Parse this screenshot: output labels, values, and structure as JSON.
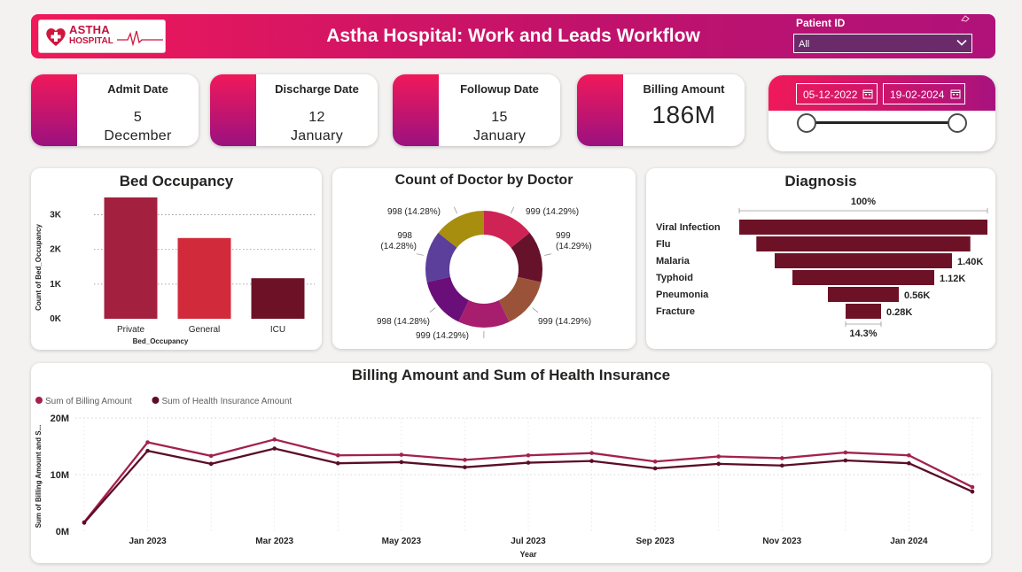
{
  "header": {
    "logo_line1": "ASTHA",
    "logo_line2": "HOSPITAL",
    "title": "Astha Hospital: Work and Leads Workflow",
    "patient_filter": {
      "label": "Patient ID",
      "value": "All"
    },
    "brand_color": "#e91460"
  },
  "kpis": [
    {
      "label": "Admit Date",
      "value": "5 December 2022"
    },
    {
      "label": "Discharge Date",
      "value": "12 January 2023"
    },
    {
      "label": "Followup Date",
      "value": "15 January 2023"
    },
    {
      "label": "Billing Amount",
      "value": "186M"
    }
  ],
  "date_slicer": {
    "start": "05-12-2022",
    "end": "19-02-2024"
  },
  "chart_data": [
    {
      "type": "bar",
      "title": "Bed Occupancy",
      "xlabel": "Bed_Occupancy",
      "ylabel": "Count of Bed_Occupancy",
      "categories": [
        "Private",
        "General",
        "ICU"
      ],
      "values": [
        3500,
        2330,
        1170
      ],
      "colors": [
        "#a3203f",
        "#d12b3b",
        "#6d1226"
      ],
      "ylim": [
        0,
        3500
      ],
      "yticks": [
        0,
        1000,
        2000,
        3000
      ],
      "ytick_labels": [
        "0K",
        "1K",
        "2K",
        "3K"
      ],
      "grid": true
    },
    {
      "type": "pie",
      "donut": true,
      "title": "Count of Doctor by Doctor",
      "slices": [
        {
          "value": 999,
          "label": "999 (14.29%)",
          "color": "#cf2356"
        },
        {
          "value": 999,
          "label": "999 (14.29%)",
          "color": "#65122a"
        },
        {
          "value": 999,
          "label": "999 (14.29%)",
          "color": "#9a5339"
        },
        {
          "value": 999,
          "label": "999 (14.29%)",
          "color": "#a81e6f"
        },
        {
          "value": 998,
          "label": "998 (14.28%)",
          "color": "#6a0f7a"
        },
        {
          "value": 998,
          "label": "998 (14.28%)",
          "color": "#5b3f9a"
        },
        {
          "value": 998,
          "label": "998 (14.28%)",
          "color": "#a88e0f"
        }
      ]
    },
    {
      "type": "bar",
      "subtype": "funnel",
      "title": "Diagnosis",
      "categories": [
        "Viral Infection",
        "Flu",
        "Malaria",
        "Typhoid",
        "Pneumonia",
        "Fracture"
      ],
      "values": [
        1960,
        1690,
        1400,
        1120,
        560,
        280
      ],
      "value_labels": [
        "",
        "",
        "1.40K",
        "1.12K",
        "0.56K",
        "0.28K"
      ],
      "top_label": "100%",
      "bottom_label": "14.3%",
      "color": "#6d1226"
    },
    {
      "type": "line",
      "title": "Billing Amount and Sum of Health Insurance",
      "xlabel": "Year",
      "ylabel": "Sum of Billing Amount and S...",
      "x": [
        "2022-12",
        "2023-01",
        "2023-02",
        "2023-03",
        "2023-04",
        "2023-05",
        "2023-06",
        "2023-07",
        "2023-08",
        "2023-09",
        "2023-10",
        "2023-11",
        "2023-12",
        "2024-01",
        "2024-02"
      ],
      "xtick_labels": [
        "Jan 2023",
        "Mar 2023",
        "May 2023",
        "Jul 2023",
        "Sep 2023",
        "Nov 2023",
        "Jan 2024"
      ],
      "xtick_positions": [
        1,
        3,
        5,
        7,
        9,
        11,
        13
      ],
      "ylim": [
        0,
        20
      ],
      "yticks": [
        0,
        10,
        20
      ],
      "ytick_labels": [
        "0M",
        "10M",
        "20M"
      ],
      "legend_position": "top-left",
      "grid": true,
      "series": [
        {
          "name": "Sum of Billing Amount",
          "color": "#a3214d",
          "values": [
            1.6,
            15.7,
            13.3,
            16.2,
            13.4,
            13.5,
            12.6,
            13.4,
            13.8,
            12.3,
            13.2,
            12.9,
            13.9,
            13.4,
            7.8
          ]
        },
        {
          "name": "Sum of Health Insurance Amount",
          "color": "#5a0c28",
          "values": [
            1.5,
            14.2,
            11.9,
            14.6,
            12.0,
            12.2,
            11.3,
            12.1,
            12.4,
            11.1,
            11.9,
            11.6,
            12.5,
            12.0,
            7.0
          ]
        }
      ]
    }
  ]
}
